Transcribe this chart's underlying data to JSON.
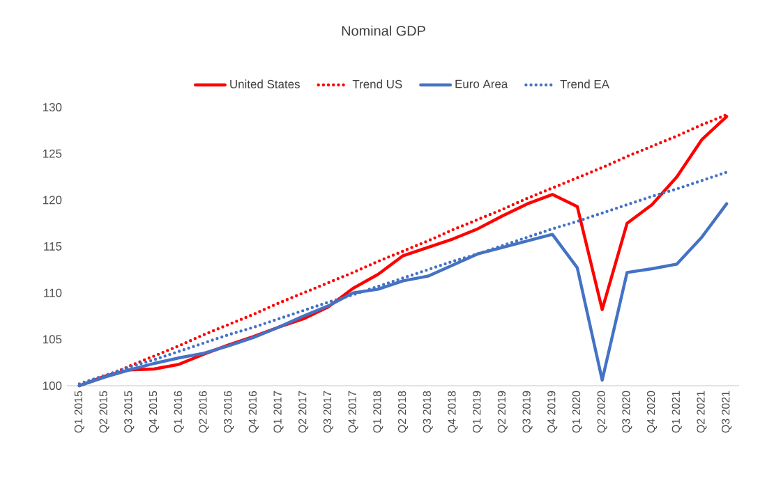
{
  "chart_data": {
    "type": "line",
    "title": "Nominal GDP",
    "categories": [
      "Q1 2015",
      "Q2 2015",
      "Q3 2015",
      "Q4 2015",
      "Q1 2016",
      "Q2 2016",
      "Q3 2016",
      "Q4 2016",
      "Q1 2017",
      "Q2 2017",
      "Q3 2017",
      "Q4 2017",
      "Q1 2018",
      "Q2 2018",
      "Q3 2018",
      "Q4 2018",
      "Q1 2019",
      "Q2 2019",
      "Q3 2019",
      "Q4 2019",
      "Q1 2020",
      "Q2 2020",
      "Q3 2020",
      "Q4 2020",
      "Q1 2021",
      "Q2 2021",
      "Q3 2021"
    ],
    "series": [
      {
        "name": "United States",
        "color": "#ff0000",
        "line_style": "solid",
        "values": [
          100,
          101,
          101.7,
          101.8,
          102.3,
          103.4,
          104.4,
          105.3,
          106.3,
          107.2,
          108.5,
          110.5,
          112,
          114,
          114.9,
          115.8,
          116.9,
          118.3,
          119.6,
          120.6,
          119.3,
          108.2,
          117.5,
          119.5,
          122.5,
          126.5,
          129
        ]
      },
      {
        "name": "Trend US",
        "color": "#ff0000",
        "line_style": "dotted",
        "values": [
          100,
          100.9,
          102.1,
          103.2,
          104.3,
          105.5,
          106.6,
          107.7,
          108.9,
          110.0,
          111.1,
          112.2,
          113.4,
          114.5,
          115.6,
          116.8,
          117.9,
          119.0,
          120.2,
          121.3,
          122.4,
          123.5,
          124.7,
          125.8,
          126.9,
          128.1,
          129.2
        ]
      },
      {
        "name": "Euro Area",
        "color": "#4472c4",
        "line_style": "solid",
        "values": [
          100,
          100.9,
          101.7,
          102.4,
          103,
          103.5,
          104.3,
          105.2,
          106.3,
          107.5,
          108.6,
          110,
          110.4,
          111.3,
          111.8,
          113,
          114.2,
          114.9,
          115.6,
          116.3,
          112.7,
          100.6,
          112.2,
          112.6,
          113.1,
          116,
          119.6
        ]
      },
      {
        "name": "Trend EA",
        "color": "#4472c4",
        "line_style": "dotted",
        "values": [
          100.2,
          101.1,
          102.0,
          102.8,
          103.7,
          104.6,
          105.5,
          106.3,
          107.2,
          108.1,
          109.0,
          109.8,
          110.7,
          111.6,
          112.5,
          113.4,
          114.2,
          115.1,
          116.0,
          116.9,
          117.7,
          118.6,
          119.5,
          120.4,
          121.2,
          122.1,
          123.0
        ]
      }
    ],
    "ylim": [
      100,
      130
    ],
    "yticks": [
      100,
      105,
      110,
      115,
      120,
      125,
      130
    ],
    "grid": false,
    "legend": "top",
    "marker": "none"
  }
}
